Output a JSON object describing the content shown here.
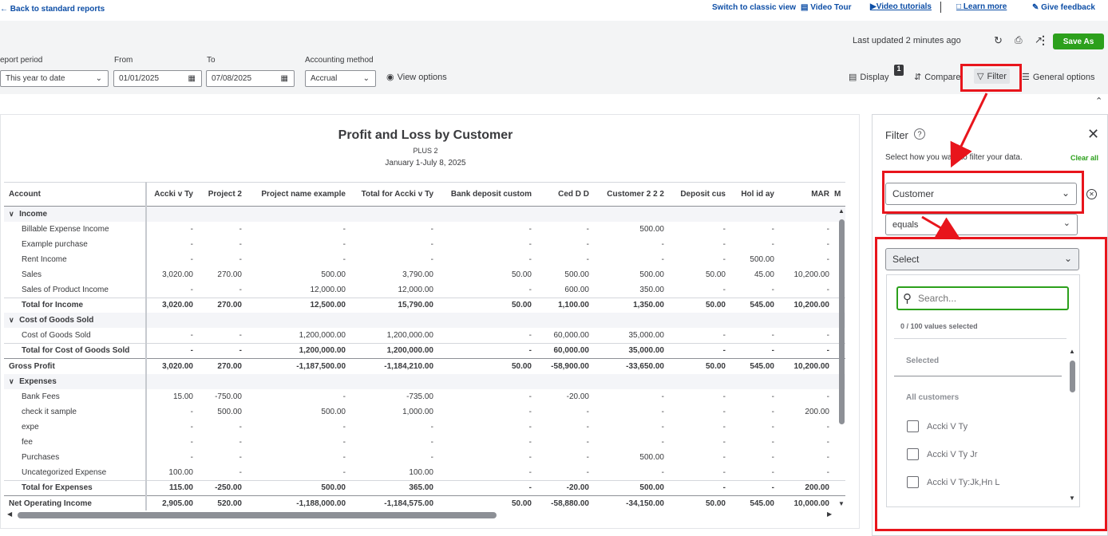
{
  "topbar": {
    "back_label": "Back to standard reports",
    "classic_view": "Switch to classic view",
    "video_tour": "Video Tour",
    "video_tutorials": "Video tutorials",
    "learn_more": "Learn more",
    "give_feedback": "Give feedback"
  },
  "toolbar": {
    "last_updated": "Last updated 2 minutes ago",
    "save_as": "Save As",
    "display": "Display",
    "display_badge": "1",
    "compare": "Compare",
    "filter": "Filter",
    "general_options": "General options",
    "view_options": "View options"
  },
  "controls": {
    "report_period_label": "eport period",
    "report_period_value": "This year to date",
    "from_label": "From",
    "from_value": "01/01/2025",
    "to_label": "To",
    "to_value": "07/08/2025",
    "accounting_label": "Accounting method",
    "accounting_value": "Accrual"
  },
  "report": {
    "title": "Profit and Loss by Customer",
    "subtitle": "PLUS 2",
    "date_range": "January 1-July 8, 2025",
    "columns": [
      "Account",
      "Accki v Ty",
      "Project 2",
      "Project name example",
      "Total for Accki v Ty",
      "Bank deposit custom",
      "Ced D D",
      "Customer 2 2 2",
      "Deposit cus",
      "Hol id ay",
      "MAR",
      "M"
    ],
    "rows": [
      {
        "type": "sec",
        "cells": [
          "Income",
          "",
          "",
          "",
          "",
          "",
          "",
          "",
          "",
          "",
          ""
        ]
      },
      {
        "type": "row",
        "indent": 1,
        "cells": [
          "Billable Expense Income",
          "-",
          "-",
          "-",
          "-",
          "-",
          "-",
          "500.00",
          "-",
          "-",
          "-"
        ]
      },
      {
        "type": "row",
        "indent": 1,
        "cells": [
          "Example purchase",
          "-",
          "-",
          "-",
          "-",
          "-",
          "-",
          "-",
          "-",
          "-",
          "-"
        ]
      },
      {
        "type": "row",
        "indent": 1,
        "cells": [
          "Rent Income",
          "-",
          "-",
          "-",
          "-",
          "-",
          "-",
          "-",
          "-",
          "500.00",
          "-"
        ]
      },
      {
        "type": "row",
        "indent": 1,
        "cells": [
          "Sales",
          "3,020.00",
          "270.00",
          "500.00",
          "3,790.00",
          "50.00",
          "500.00",
          "500.00",
          "50.00",
          "45.00",
          "10,200.00"
        ]
      },
      {
        "type": "row",
        "indent": 1,
        "cells": [
          "Sales of Product Income",
          "-",
          "-",
          "12,000.00",
          "12,000.00",
          "-",
          "600.00",
          "350.00",
          "-",
          "-",
          "-"
        ]
      },
      {
        "type": "tot",
        "indent": 1,
        "cells": [
          "Total for Income",
          "3,020.00",
          "270.00",
          "12,500.00",
          "15,790.00",
          "50.00",
          "1,100.00",
          "1,350.00",
          "50.00",
          "545.00",
          "10,200.00"
        ]
      },
      {
        "type": "sec",
        "cells": [
          "Cost of Goods Sold",
          "",
          "",
          "",
          "",
          "",
          "",
          "",
          "",
          "",
          ""
        ]
      },
      {
        "type": "row",
        "indent": 1,
        "cells": [
          "Cost of Goods Sold",
          "-",
          "-",
          "1,200,000.00",
          "1,200,000.00",
          "-",
          "60,000.00",
          "35,000.00",
          "-",
          "-",
          "-"
        ]
      },
      {
        "type": "tot",
        "indent": 1,
        "cells": [
          "Total for Cost of Goods Sold",
          "-",
          "-",
          "1,200,000.00",
          "1,200,000.00",
          "-",
          "60,000.00",
          "35,000.00",
          "-",
          "-",
          "-"
        ]
      },
      {
        "type": "grand",
        "indent": 0,
        "cells": [
          "Gross Profit",
          "3,020.00",
          "270.00",
          "-1,187,500.00",
          "-1,184,210.00",
          "50.00",
          "-58,900.00",
          "-33,650.00",
          "50.00",
          "545.00",
          "10,200.00"
        ]
      },
      {
        "type": "sec",
        "cells": [
          "Expenses",
          "",
          "",
          "",
          "",
          "",
          "",
          "",
          "",
          "",
          ""
        ]
      },
      {
        "type": "row",
        "indent": 1,
        "cells": [
          "Bank Fees",
          "15.00",
          "-750.00",
          "-",
          "-735.00",
          "-",
          "-20.00",
          "-",
          "-",
          "-",
          "-"
        ]
      },
      {
        "type": "row",
        "indent": 1,
        "cells": [
          "check it sample",
          "-",
          "500.00",
          "500.00",
          "1,000.00",
          "-",
          "-",
          "-",
          "-",
          "-",
          "200.00"
        ]
      },
      {
        "type": "row",
        "indent": 1,
        "cells": [
          "expe",
          "-",
          "-",
          "-",
          "-",
          "-",
          "-",
          "-",
          "-",
          "-",
          "-"
        ]
      },
      {
        "type": "row",
        "indent": 1,
        "cells": [
          "fee",
          "-",
          "-",
          "-",
          "-",
          "-",
          "-",
          "-",
          "-",
          "-",
          "-"
        ]
      },
      {
        "type": "row",
        "indent": 1,
        "cells": [
          "Purchases",
          "-",
          "-",
          "-",
          "-",
          "-",
          "-",
          "500.00",
          "-",
          "-",
          "-"
        ]
      },
      {
        "type": "row",
        "indent": 1,
        "cells": [
          "Uncategorized Expense",
          "100.00",
          "-",
          "-",
          "100.00",
          "-",
          "-",
          "-",
          "-",
          "-",
          "-"
        ]
      },
      {
        "type": "tot",
        "indent": 1,
        "cells": [
          "Total for Expenses",
          "115.00",
          "-250.00",
          "500.00",
          "365.00",
          "-",
          "-20.00",
          "500.00",
          "-",
          "-",
          "200.00"
        ]
      },
      {
        "type": "grand",
        "indent": 0,
        "cells": [
          "Net Operating Income",
          "2,905.00",
          "520.00",
          "-1,188,000.00",
          "-1,184,575.00",
          "50.00",
          "-58,880.00",
          "-34,150.00",
          "50.00",
          "545.00",
          "10,000.00"
        ]
      }
    ]
  },
  "filter_panel": {
    "title": "Filter",
    "instruction": "Select how you want to filter your data.",
    "clear_all": "Clear all",
    "field_value": "Customer",
    "operator_value": "equals",
    "select_placeholder": "Select",
    "search_placeholder": "Search...",
    "selected_count": "0 / 100 values selected",
    "selected_heading": "Selected",
    "all_heading": "All customers",
    "options": [
      "Accki V Ty",
      "Accki V Ty Jr",
      "Accki V Ty:Jk,Hn L"
    ]
  },
  "colors": {
    "accent_green": "#2ca01c",
    "annotation_red": "#e8151c",
    "link_blue": "#0d4ea6"
  }
}
